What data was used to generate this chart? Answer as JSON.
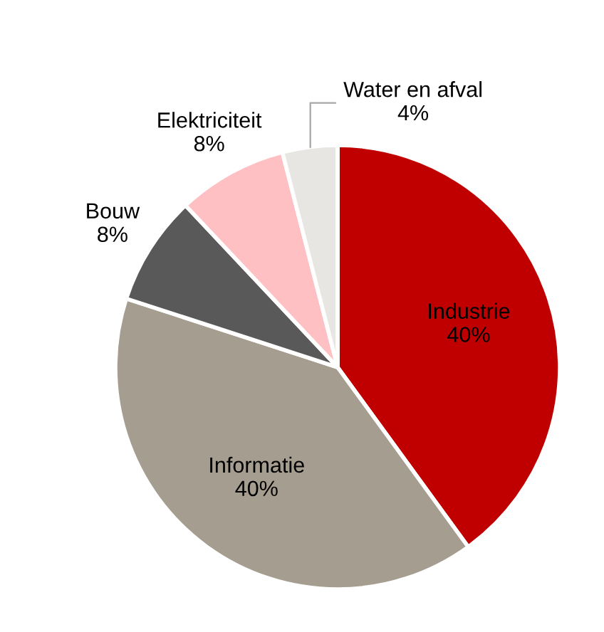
{
  "chart_data": {
    "type": "pie",
    "categories": [
      "Industrie",
      "Informatie",
      "Bouw",
      "Elektriciteit",
      "Water en afval"
    ],
    "values": [
      40,
      40,
      8,
      8,
      4
    ],
    "colors": [
      "#c00000",
      "#a59d8f",
      "#595959",
      "#ffc0c4",
      "#e8e6e3"
    ],
    "value_labels": [
      "40%",
      "40%",
      "8%",
      "8%",
      "4%"
    ]
  }
}
